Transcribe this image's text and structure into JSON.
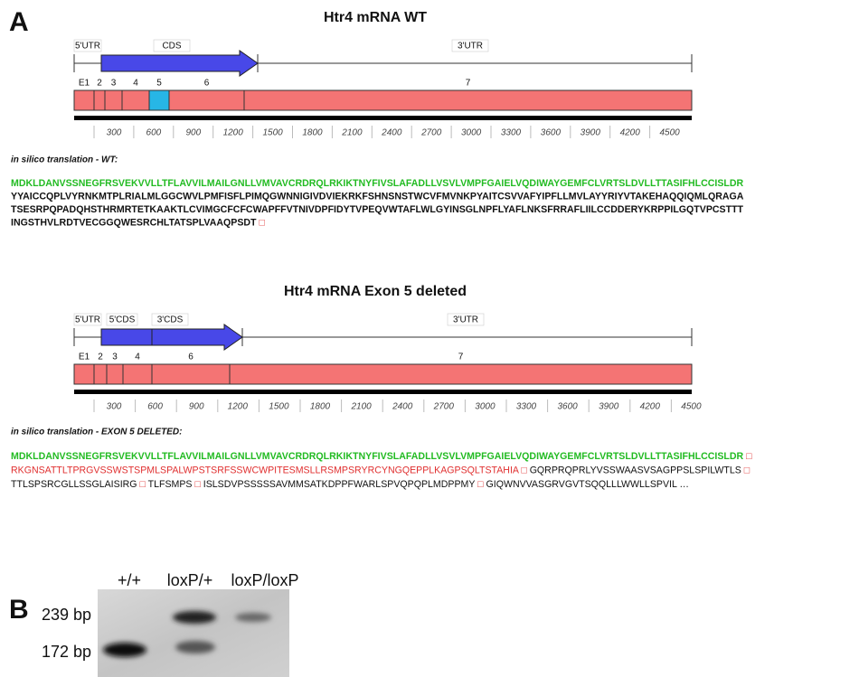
{
  "panel_a": {
    "label": "A",
    "wt": {
      "title": "Htr4 mRNA WT",
      "regions": [
        "5'UTR",
        "CDS",
        "3'UTR"
      ],
      "exons": [
        "E1",
        "2",
        "3",
        "4",
        "5",
        "6",
        "7"
      ],
      "scale_ticks": [
        300,
        600,
        900,
        1200,
        1500,
        1800,
        2100,
        2400,
        2700,
        3000,
        3300,
        3600,
        3900,
        4200,
        4500
      ],
      "translation_label": "in silico translation - WT:",
      "lines": [
        [
          {
            "text": "MDKLDANVSSNEGFRSVEKVVLLTFLAVVILMAILGNLLVMVAVCRDRQLRKIKTNYFIVSLAFADLLVSVLVMPFGAIELVQDIWAYGEMFCLVRTSLDVLLTTASIFHLCCISLDR",
            "color": "#22bb22"
          }
        ],
        [
          {
            "text": "YYAICCQPLVYRNKMTPLRIALMLGGCWVLPMFISFLPIMQGWNNIGIVDVIEKRKFSHNSNSTWCVFMVNKPYAITCSVVAFYIPFLLMVLAYYRIYVTAKEHAQQIQMLQRAGA",
            "color": "#111111"
          }
        ],
        [
          {
            "text": "TSESRPQPADQHSTHRMRTETKAAKTLCVIMGCFCFCWAPFFVTNIVDPFIDYTVPEQVWTAFLWLGYINSGLNPFLYAFLNKSFRRAFLIILCCDDERYKRPPILGQTVPCSTTT",
            "color": "#111111"
          }
        ],
        [
          {
            "text": "INGSTHVLRDTVECGGQWESRCHLTATSPLVAAQPSDT",
            "color": "#111111"
          },
          {
            "text": " □",
            "color": "#e03030"
          }
        ]
      ]
    },
    "deleted": {
      "title": "Htr4 mRNA Exon 5 deleted",
      "regions": [
        "5'UTR",
        "5'CDS",
        "3'CDS",
        "3'UTR"
      ],
      "exons": [
        "E1",
        "2",
        "3",
        "4",
        "6",
        "7"
      ],
      "scale_ticks": [
        300,
        600,
        900,
        1200,
        1500,
        1800,
        2100,
        2400,
        2700,
        3000,
        3300,
        3600,
        3900,
        4200,
        4500
      ],
      "translation_label": "in silico translation - EXON 5 DELETED:",
      "lines": [
        [
          {
            "text": "MDKLDANVSSNEGFRSVEKVVLLTFLAVVILMAILGNLLVMVAVCRDRQLRKIKTNYFIVSLAFADLLVSVLVMPFGAIELVQDIWAYGEMFCLVRTSLDVLLTTASIFHLCCISLDR",
            "color": "#22bb22"
          },
          {
            "text": " □",
            "color": "#e03030"
          }
        ],
        [
          {
            "text": "RKGNSATTLTPRGVSSWSTSPMLSPALWPSTSRFSSWCWPITESMSLLRSMPSRYRCYNGQEPPLKAGPSQLTSTAHIA",
            "color": "#e03030"
          },
          {
            "text": " □ ",
            "color": "#e03030"
          },
          {
            "text": "GQRPRQPRLYVSSWAASVSAGPPSLSPILWTLS",
            "color": "#111111"
          },
          {
            "text": " □",
            "color": "#e03030"
          }
        ],
        [
          {
            "text": "TTLSPSRCGLLSSGLAISIRG",
            "color": "#111111"
          },
          {
            "text": " □ ",
            "color": "#e03030"
          },
          {
            "text": "TLFSMPS",
            "color": "#111111"
          },
          {
            "text": " □ ",
            "color": "#e03030"
          },
          {
            "text": "ISLSDVPSSSSSAVMMSATKDPPFWARLSPVQPQPLMDPPMY",
            "color": "#111111"
          },
          {
            "text": " □ ",
            "color": "#e03030"
          },
          {
            "text": "GIQWNVVASGRVGVTSQQLLLWWLLSPVIL …",
            "color": "#111111"
          }
        ]
      ]
    }
  },
  "panel_b": {
    "label": "B",
    "lanes": [
      "+/+",
      "loxP/+",
      "loxP/loxP"
    ],
    "bands": [
      "239 bp",
      "172 bp"
    ]
  }
}
